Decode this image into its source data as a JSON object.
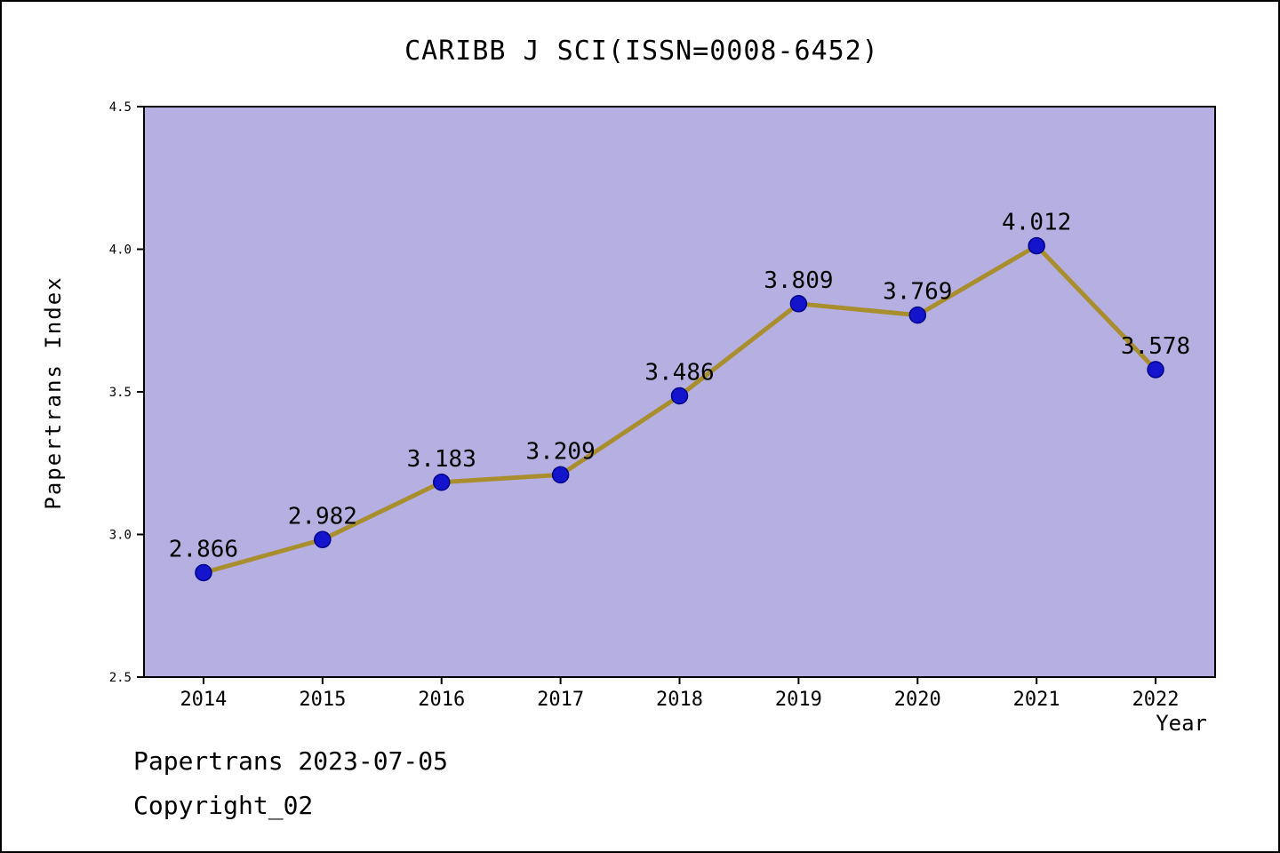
{
  "title": "CARIBB J SCI(ISSN=0008-6452)",
  "footer": {
    "line1": "Papertrans 2023-07-05",
    "line2": "Copyright_02"
  },
  "chart_data": {
    "type": "line",
    "title": "CARIBB J SCI(ISSN=0008-6452)",
    "xlabel": "Year",
    "ylabel": "Papertrans Index",
    "x": [
      2014,
      2015,
      2016,
      2017,
      2018,
      2019,
      2020,
      2021,
      2022
    ],
    "series": [
      {
        "name": "Papertrans Index",
        "values": [
          2.866,
          2.982,
          3.183,
          3.209,
          3.486,
          3.809,
          3.769,
          4.012,
          3.578
        ],
        "labels": [
          "2.866",
          "2.982",
          "3.183",
          "3.209",
          "3.486",
          "3.809",
          "3.769",
          "4.012",
          "3.578"
        ]
      }
    ],
    "ylim": [
      2.5,
      4.5
    ],
    "yticks": [
      "2.5",
      "3.0",
      "3.5",
      "4.0",
      "4.5"
    ],
    "grid": "off",
    "legend": "none",
    "colors": {
      "plot_background": "#b6b0e2",
      "line": "#a98e2d",
      "marker_fill": "#1414cc",
      "marker_edge": "#00008b",
      "axis": "#000000",
      "text": "#000000"
    }
  }
}
